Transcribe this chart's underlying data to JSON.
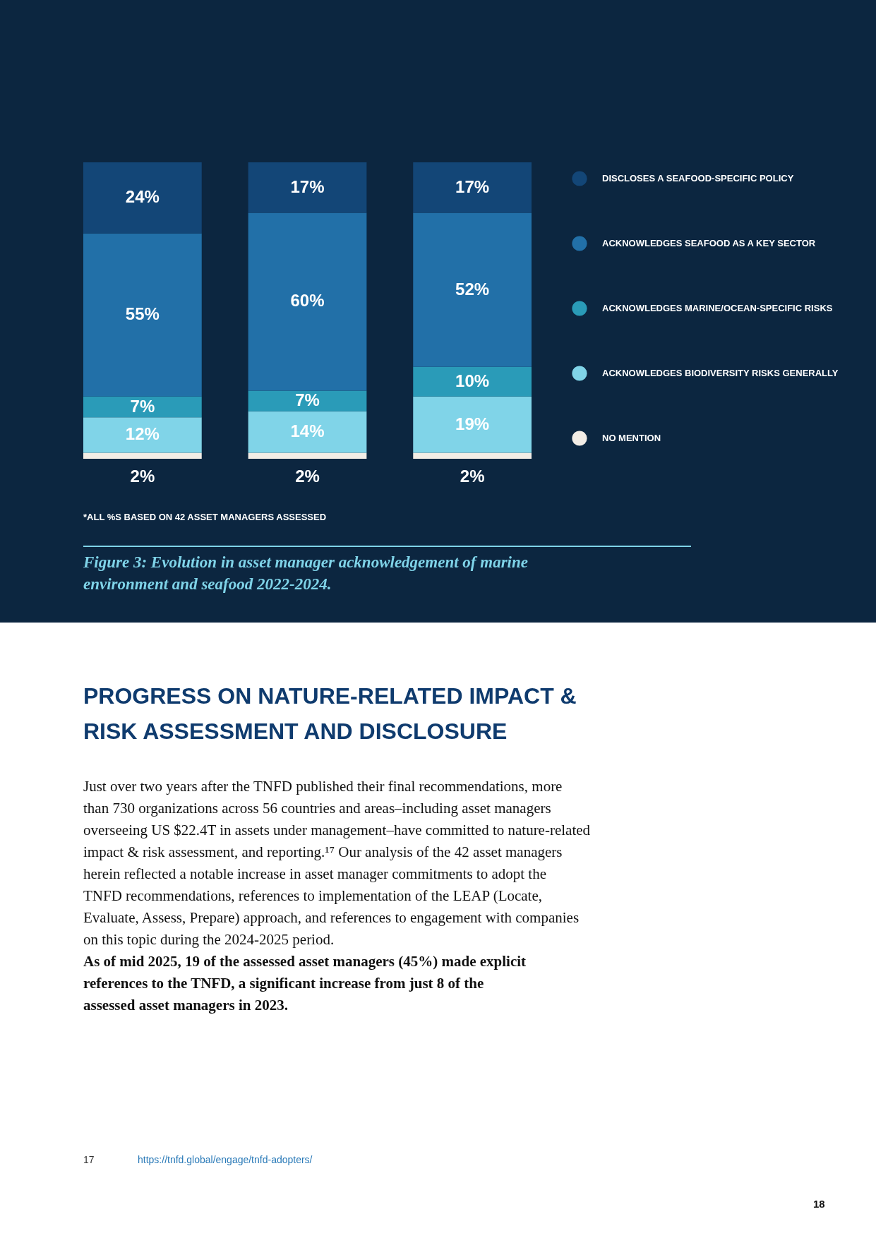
{
  "chart_data": {
    "type": "bar",
    "stacked": true,
    "title": "Figure 3: Evolution in asset manager acknowledgement of marine environment and seafood 2022-2024.",
    "categories": [
      null,
      null,
      null
    ],
    "series": [
      {
        "name": "NO MENTION",
        "color": "#f3ede6",
        "values": [
          2,
          2,
          2
        ],
        "value_labels": [
          "2%",
          "2%",
          "2%"
        ]
      },
      {
        "name": "ACKNOWLEDGES BIODIVERSITY RISKS GENERALLY",
        "color": "#80d4e8",
        "values": [
          12,
          14,
          19
        ],
        "value_labels": [
          "12%",
          "14%",
          "19%"
        ]
      },
      {
        "name": "ACKNOWLEDGES MARINE/OCEAN-SPECIFIC RISKS",
        "color": "#2a9bb8",
        "values": [
          7,
          7,
          10
        ],
        "value_labels": [
          "7%",
          "7%",
          "10%"
        ]
      },
      {
        "name": "ACKNOWLEDGES SEAFOOD AS A KEY SECTOR",
        "color": "#2270a8",
        "values": [
          55,
          60,
          52
        ],
        "value_labels": [
          "55%",
          "60%",
          "52%"
        ]
      },
      {
        "name": "DISCLOSES A SEAFOOD-SPECIFIC POLICY",
        "color": "#134677",
        "values": [
          24,
          17,
          17
        ],
        "value_labels": [
          "24%",
          "17%",
          "17%"
        ]
      }
    ],
    "legend": "right",
    "annotations": [
      "*ALL %S BASED ON 42 ASSET MANAGERS ASSESSED",
      "PROGRESS ON NATURE-RELATED IMPACT & RISK ASSESSMENT AND DISCLOSURE",
      "Just over two years after the TNFD published their final recommendations, more than 730 organizations across 56 countries and areas–including asset managers overseeing US $22.4T in assets under management–have committed to nature-related impact & risk assessment, and reporting.¹⁷ Our analysis of the 42 asset managers herein reflected a notable increase in asset manager commitments to adopt the TNFD recommendations, references to implementation of the LEAP (Locate, Evaluate, Assess, Prepare) approach, and references to engagement with companies on this topic during the 2024-2025 period.",
      "As of mid 2025, 19 of the assessed asset managers (45%) made explicit references to the TNFD, a significant increase from just 8 of the assessed asset managers in 2023.",
      "17 https://tnfd.global/engage/tnfd-adopters/",
      "18"
    ]
  }
}
